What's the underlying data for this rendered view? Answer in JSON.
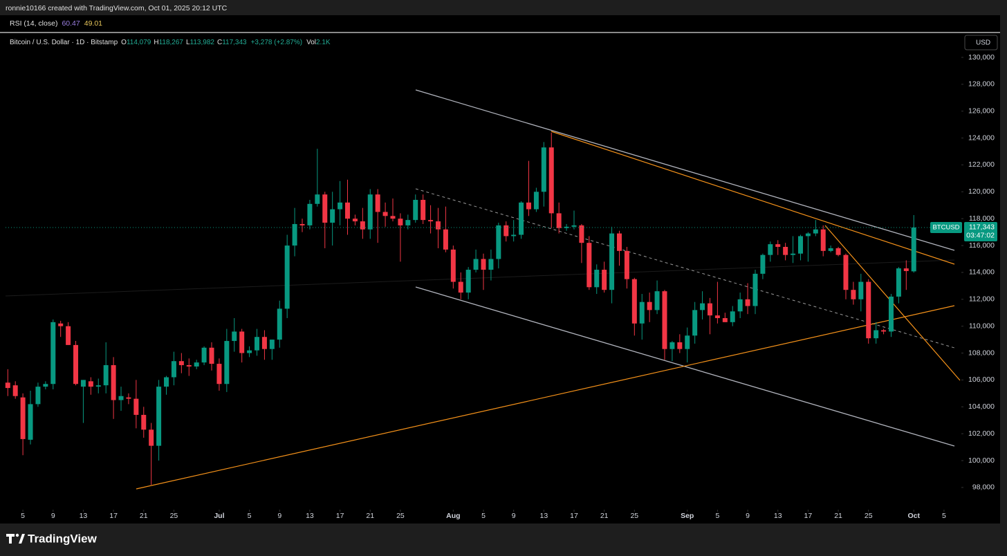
{
  "header": {
    "attribution": "ronnie10166 created with TradingView.com, Oct 01, 2025 20:12 UTC"
  },
  "rsi": {
    "label": "RSI (14, close)",
    "value": "60.47",
    "signal": "49.01"
  },
  "footer": {
    "brand": "TradingView"
  },
  "chart_data": {
    "type": "candlestick",
    "title": "Bitcoin / U.S. Dollar · 1D · Bitstamp",
    "legend": {
      "open_key": "O",
      "open": "114,079",
      "high_key": "H",
      "high": "118,267",
      "low_key": "L",
      "low": "113,982",
      "close_key": "C",
      "close": "117,343",
      "change": "+3,278 (+2.87%)",
      "volume_key": "Vol",
      "volume": "2.1K"
    },
    "currency": "USD",
    "symbol": "BTCUSD",
    "last_price_label": "117,343",
    "countdown": "03:47:02",
    "up_color": "#089981",
    "down_color": "#f23645",
    "open": [
      105800,
      105600,
      104700,
      101550,
      104200,
      105500,
      105700,
      110200,
      110000,
      108600,
      105500,
      105900,
      105500,
      105600,
      107100,
      104500,
      104700,
      104600,
      103400,
      102300,
      101100,
      105500,
      106200,
      107400,
      107100,
      107000,
      107300,
      108400,
      107200,
      105700,
      108900,
      109600,
      108000,
      108200,
      109200,
      108300,
      109000,
      111300,
      116000,
      117600,
      117500,
      119100,
      119800,
      117700,
      118700,
      119200,
      118000,
      117800,
      117200,
      119800,
      118500,
      118200,
      118000,
      117500,
      117900,
      119400,
      117900,
      117800,
      117200,
      115700,
      113300,
      112500,
      114200,
      115000,
      114200,
      115000,
      117500,
      116700,
      116800,
      119200,
      118700,
      120000,
      123300,
      118400,
      117300,
      117400,
      117500,
      116200,
      112900,
      114200,
      112700,
      116900,
      115600,
      113500,
      110200,
      111800,
      111200,
      112600,
      108300,
      108800,
      108300,
      109300,
      111200,
      111700,
      110800,
      110600,
      110300,
      111100,
      112000,
      111500,
      113900,
      115300,
      116100,
      115900,
      115300,
      115400,
      116700,
      116900,
      117200,
      115600,
      115800,
      115300,
      112700,
      112000,
      113300,
      109100,
      109700,
      109600,
      112200,
      114300,
      114079
    ],
    "high": [
      106800,
      105900,
      105000,
      105200,
      105800,
      105900,
      110500,
      110400,
      110300,
      108900,
      106000,
      106200,
      106100,
      108800,
      107700,
      105500,
      105000,
      106000,
      104000,
      102800,
      106000,
      106300,
      108100,
      108000,
      107600,
      107500,
      108500,
      108800,
      107600,
      109800,
      110600,
      109800,
      108500,
      109800,
      109700,
      109000,
      111900,
      116800,
      118800,
      118000,
      119400,
      123200,
      120000,
      120000,
      120800,
      120900,
      118300,
      118800,
      120200,
      120200,
      119200,
      119500,
      118400,
      118300,
      119800,
      119800,
      119000,
      118800,
      118900,
      116000,
      114000,
      114400,
      115700,
      115400,
      115700,
      117700,
      117800,
      117900,
      119300,
      122300,
      120300,
      123700,
      124400,
      119200,
      117600,
      118600,
      117600,
      116700,
      114600,
      114800,
      117400,
      117100,
      115900,
      113600,
      112400,
      112500,
      113400,
      112700,
      108900,
      109400,
      109900,
      111800,
      112600,
      112100,
      113300,
      111000,
      111500,
      112500,
      113200,
      114200,
      115400,
      116300,
      116400,
      116200,
      116700,
      116800,
      117000,
      117900,
      117500,
      116000,
      115900,
      115400,
      113300,
      113900,
      113500,
      110300,
      109800,
      112400,
      114400,
      114900,
      118267
    ],
    "low": [
      104800,
      104600,
      100400,
      101200,
      104000,
      105300,
      105300,
      109200,
      108600,
      105600,
      102800,
      104900,
      105000,
      105000,
      103100,
      103700,
      104200,
      102400,
      101700,
      98200,
      100000,
      104900,
      105600,
      106500,
      106300,
      106800,
      107100,
      106700,
      105200,
      105100,
      108100,
      107300,
      107700,
      107800,
      107500,
      107500,
      108400,
      110600,
      115200,
      117000,
      117200,
      118900,
      115800,
      116000,
      117500,
      116800,
      117500,
      116500,
      116500,
      116200,
      117400,
      117800,
      114800,
      117200,
      117700,
      117600,
      116900,
      115800,
      115500,
      112800,
      112000,
      112000,
      114000,
      112700,
      113400,
      114300,
      116300,
      116300,
      116500,
      118200,
      118500,
      118900,
      117300,
      116900,
      117100,
      117200,
      114700,
      112700,
      112400,
      112500,
      111700,
      114500,
      112800,
      109300,
      109000,
      110300,
      110900,
      107500,
      107400,
      108000,
      107300,
      108700,
      110500,
      109400,
      110200,
      110300,
      110000,
      110600,
      110900,
      110900,
      113500,
      114800,
      115300,
      114900,
      114700,
      114900,
      114800,
      116700,
      115200,
      115500,
      115200,
      112000,
      111600,
      111100,
      108700,
      108700,
      109400,
      109200,
      111700,
      112700,
      113982
    ],
    "close": [
      105400,
      104800,
      101600,
      104200,
      105500,
      105700,
      110300,
      110000,
      108600,
      105700,
      106000,
      105500,
      105600,
      107100,
      104500,
      104800,
      104600,
      103400,
      102300,
      101100,
      105500,
      106200,
      107400,
      107100,
      107000,
      107300,
      108400,
      107200,
      105700,
      108900,
      109600,
      108000,
      108200,
      109200,
      108300,
      109000,
      111300,
      116000,
      117600,
      117500,
      119100,
      119800,
      117700,
      118700,
      119200,
      118000,
      117800,
      117200,
      119800,
      118500,
      118200,
      118000,
      117500,
      117900,
      119400,
      117900,
      117800,
      117200,
      115700,
      113300,
      112500,
      114200,
      115000,
      114200,
      115000,
      117500,
      116700,
      116800,
      119200,
      118700,
      120000,
      123300,
      118400,
      117300,
      117400,
      117500,
      116200,
      112900,
      114200,
      112700,
      116900,
      115600,
      113500,
      110200,
      111800,
      111200,
      112600,
      108300,
      108800,
      108300,
      109300,
      111200,
      111700,
      110800,
      110600,
      110300,
      111100,
      112000,
      111500,
      113900,
      115300,
      116100,
      115900,
      115300,
      115400,
      116700,
      116900,
      117200,
      115600,
      115800,
      115300,
      112700,
      112000,
      113300,
      109100,
      109700,
      109600,
      112200,
      114300,
      114100,
      117343
    ],
    "xlim": [
      -0.3,
      126.3
    ],
    "xticks": [
      {
        "value": 2,
        "label": "5"
      },
      {
        "value": 6,
        "label": "9"
      },
      {
        "value": 10,
        "label": "13"
      },
      {
        "value": 14,
        "label": "17"
      },
      {
        "value": 18,
        "label": "21"
      },
      {
        "value": 22,
        "label": "25"
      },
      {
        "value": 28,
        "label": "Jul"
      },
      {
        "value": 32,
        "label": "5"
      },
      {
        "value": 36,
        "label": "9"
      },
      {
        "value": 40,
        "label": "13"
      },
      {
        "value": 44,
        "label": "17"
      },
      {
        "value": 48,
        "label": "21"
      },
      {
        "value": 52,
        "label": "25"
      },
      {
        "value": 59,
        "label": "Aug"
      },
      {
        "value": 63,
        "label": "5"
      },
      {
        "value": 67,
        "label": "9"
      },
      {
        "value": 71,
        "label": "13"
      },
      {
        "value": 75,
        "label": "17"
      },
      {
        "value": 79,
        "label": "21"
      },
      {
        "value": 83,
        "label": "25"
      },
      {
        "value": 90,
        "label": "Sep"
      },
      {
        "value": 94,
        "label": "5"
      },
      {
        "value": 98,
        "label": "9"
      },
      {
        "value": 102,
        "label": "13"
      },
      {
        "value": 106,
        "label": "17"
      },
      {
        "value": 110,
        "label": "21"
      },
      {
        "value": 114,
        "label": "25"
      },
      {
        "value": 120,
        "label": "Oct"
      },
      {
        "value": 124,
        "label": "5"
      }
    ],
    "ylim": [
      96450,
      131800
    ],
    "yticks": [
      {
        "value": 98000,
        "label": "98,000"
      },
      {
        "value": 100000,
        "label": "100,000"
      },
      {
        "value": 102000,
        "label": "102,000"
      },
      {
        "value": 104000,
        "label": "104,000"
      },
      {
        "value": 106000,
        "label": "106,000"
      },
      {
        "value": 108000,
        "label": "108,000"
      },
      {
        "value": 110000,
        "label": "110,000"
      },
      {
        "value": 112000,
        "label": "112,000"
      },
      {
        "value": 114000,
        "label": "114,000"
      },
      {
        "value": 116000,
        "label": "116,000"
      },
      {
        "value": 118000,
        "label": "118,000"
      },
      {
        "value": 120000,
        "label": "120,000"
      },
      {
        "value": 122000,
        "label": "122,000"
      },
      {
        "value": 124000,
        "label": "124,000"
      },
      {
        "value": 126000,
        "label": "126,000"
      },
      {
        "value": 128000,
        "label": "128,000"
      },
      {
        "value": 130000,
        "label": "130,000"
      }
    ]
  }
}
